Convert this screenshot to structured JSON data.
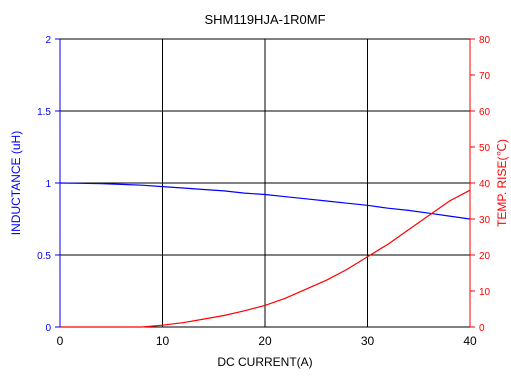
{
  "chart_data": {
    "type": "line",
    "title": "SHM119HJA-1R0MF",
    "xlabel": "DC CURRENT(A)",
    "ylabel_left": "INDUCTANCE (uH)",
    "ylabel_right": "TEMP. RISE(℃)",
    "xlim": [
      0,
      40
    ],
    "ylim_left": [
      0,
      2
    ],
    "ylim_right": [
      0,
      80
    ],
    "x_ticks": [
      "0",
      "10",
      "20",
      "30",
      "40"
    ],
    "y_left_ticks": [
      "0",
      "0.5",
      "1",
      "1.5",
      "2"
    ],
    "y_right_ticks": [
      "0",
      "10",
      "20",
      "30",
      "40",
      "50",
      "60",
      "70",
      "80"
    ],
    "grid": true,
    "colors": {
      "inductance": "#0000ff",
      "temp_rise": "#ff0000",
      "grid": "#000000"
    },
    "series": [
      {
        "axis": "left",
        "x": [
          0,
          2,
          4,
          6,
          8,
          10,
          12,
          14,
          16,
          18,
          20,
          22,
          24,
          26,
          28,
          30,
          32,
          34,
          36,
          38,
          40
        ],
        "values": [
          1.0,
          0.998,
          0.995,
          0.99,
          0.985,
          0.975,
          0.965,
          0.955,
          0.945,
          0.93,
          0.92,
          0.905,
          0.89,
          0.875,
          0.86,
          0.845,
          0.825,
          0.81,
          0.79,
          0.77,
          0.75
        ]
      },
      {
        "axis": "right",
        "x": [
          0,
          2,
          4,
          6,
          8,
          10,
          12,
          14,
          16,
          18,
          20,
          22,
          24,
          26,
          28,
          30,
          32,
          34,
          36,
          38,
          40
        ],
        "values": [
          0,
          0,
          0,
          0,
          0,
          0.5,
          1.2,
          2.2,
          3.2,
          4.5,
          6,
          8,
          10.5,
          13,
          16,
          19.5,
          23,
          27,
          31,
          35,
          38
        ]
      }
    ]
  }
}
